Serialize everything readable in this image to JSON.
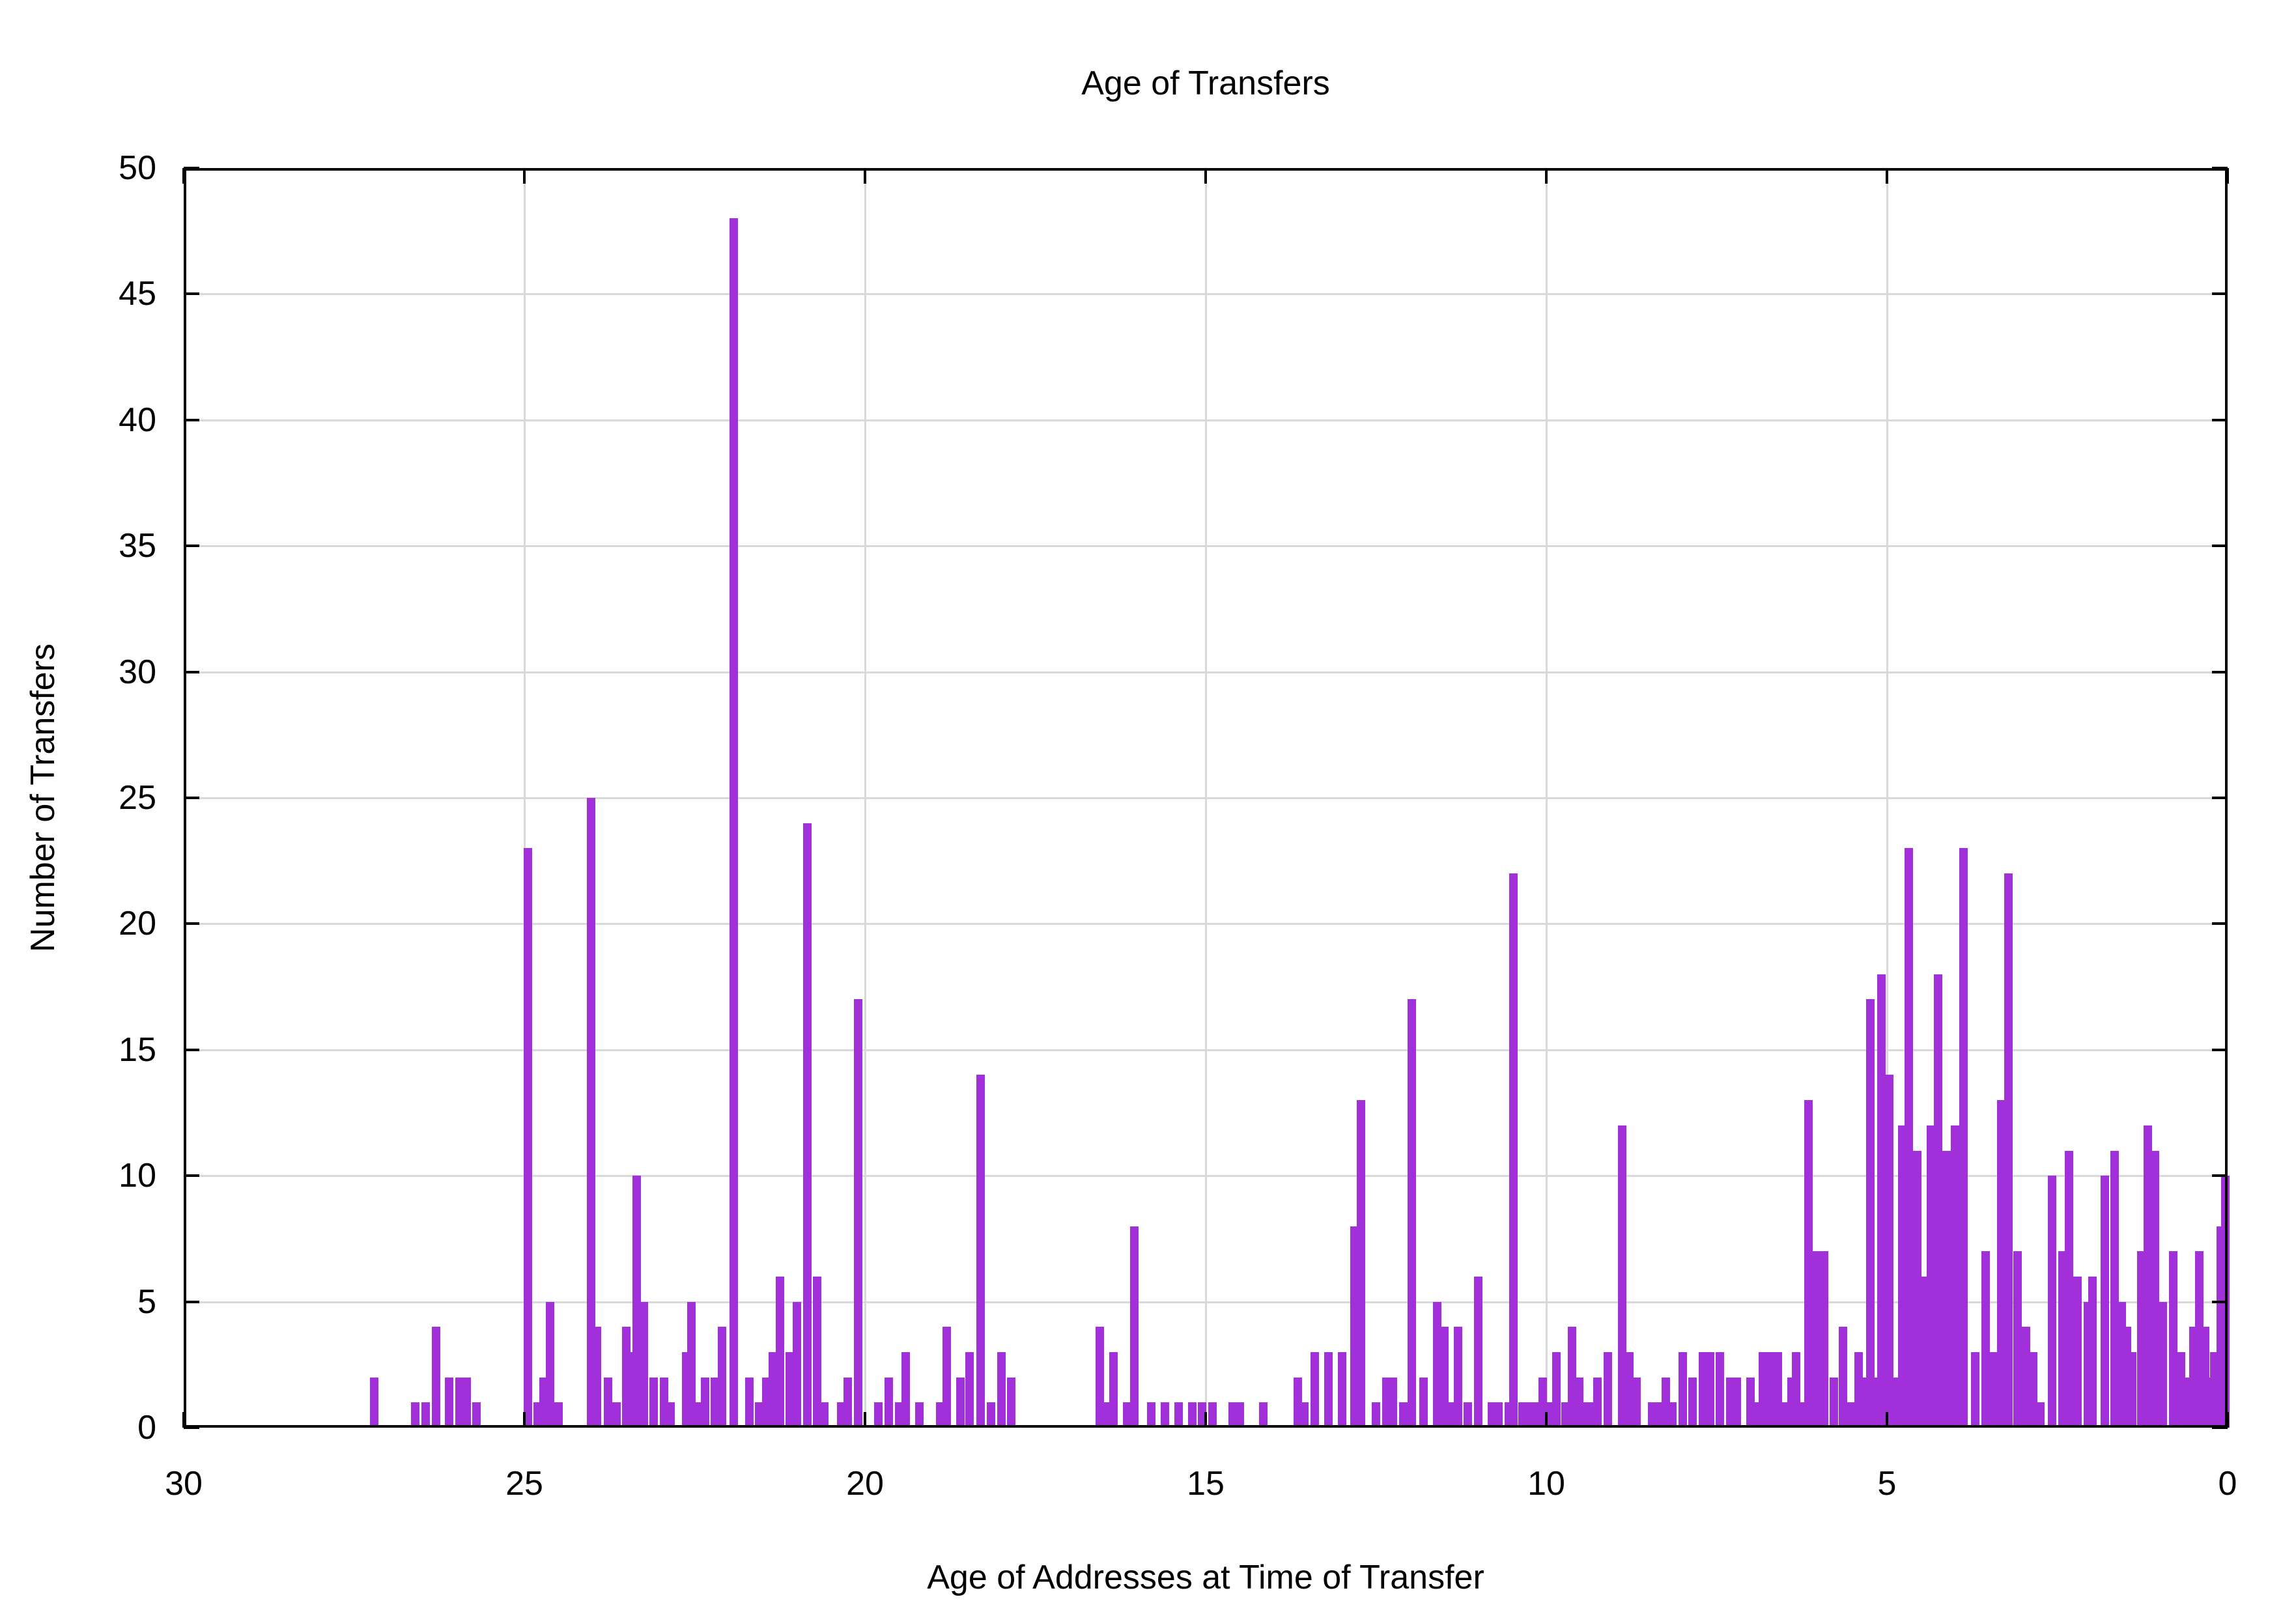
{
  "title": "Age of Transfers",
  "x_axis": {
    "label": "Age of Addresses at Time of Transfer",
    "ticks": [
      30,
      25,
      20,
      15,
      10,
      5,
      0
    ],
    "min": 0,
    "max": 30,
    "reversed": true
  },
  "y_axis": {
    "label": "Number of Transfers",
    "ticks": [
      0,
      5,
      10,
      15,
      20,
      25,
      30,
      35,
      40,
      45,
      50
    ],
    "min": 0,
    "max": 50
  },
  "colors": {
    "bar": "#A230DA",
    "grid": "#D9D9D9",
    "axis": "#000000",
    "background": "#FFFFFF"
  },
  "chart_data": {
    "type": "bar",
    "title": "Age of Transfers",
    "xlabel": "Age of Addresses at Time of Transfer",
    "ylabel": "Number of Transfers",
    "xlim": [
      30,
      0
    ],
    "ylim": [
      0,
      50
    ],
    "grid": true,
    "legend": "none",
    "bar_width_years": 0.125,
    "points_format": "[age_years, number_of_transfers]",
    "points": [
      [
        27.2,
        2
      ],
      [
        26.6,
        1
      ],
      [
        26.45,
        1
      ],
      [
        26.3,
        4
      ],
      [
        26.1,
        2
      ],
      [
        25.95,
        2
      ],
      [
        25.85,
        2
      ],
      [
        25.7,
        1
      ],
      [
        24.95,
        23
      ],
      [
        24.8,
        1
      ],
      [
        24.72,
        2
      ],
      [
        24.62,
        5
      ],
      [
        24.5,
        1
      ],
      [
        24.02,
        25
      ],
      [
        23.93,
        4
      ],
      [
        23.77,
        2
      ],
      [
        23.65,
        1
      ],
      [
        23.5,
        4
      ],
      [
        23.42,
        3
      ],
      [
        23.35,
        10
      ],
      [
        23.25,
        5
      ],
      [
        23.1,
        2
      ],
      [
        22.95,
        2
      ],
      [
        22.85,
        1
      ],
      [
        22.62,
        3
      ],
      [
        22.55,
        5
      ],
      [
        22.42,
        1
      ],
      [
        22.35,
        2
      ],
      [
        22.2,
        2
      ],
      [
        22.1,
        4
      ],
      [
        21.93,
        48
      ],
      [
        21.7,
        2
      ],
      [
        21.55,
        1
      ],
      [
        21.45,
        2
      ],
      [
        21.35,
        3
      ],
      [
        21.25,
        6
      ],
      [
        21.1,
        3
      ],
      [
        21.0,
        5
      ],
      [
        20.85,
        24
      ],
      [
        20.7,
        6
      ],
      [
        20.6,
        1
      ],
      [
        20.35,
        1
      ],
      [
        20.25,
        2
      ],
      [
        20.1,
        17
      ],
      [
        19.8,
        1
      ],
      [
        19.65,
        2
      ],
      [
        19.5,
        1
      ],
      [
        19.4,
        3
      ],
      [
        19.2,
        1
      ],
      [
        18.9,
        1
      ],
      [
        18.8,
        4
      ],
      [
        18.6,
        2
      ],
      [
        18.47,
        3
      ],
      [
        18.3,
        14
      ],
      [
        18.15,
        1
      ],
      [
        18.0,
        3
      ],
      [
        17.85,
        2
      ],
      [
        16.55,
        4
      ],
      [
        16.45,
        1
      ],
      [
        16.35,
        3
      ],
      [
        16.15,
        1
      ],
      [
        16.05,
        8
      ],
      [
        15.8,
        1
      ],
      [
        15.6,
        1
      ],
      [
        15.4,
        1
      ],
      [
        15.2,
        1
      ],
      [
        15.05,
        1
      ],
      [
        14.9,
        1
      ],
      [
        14.6,
        1
      ],
      [
        14.5,
        1
      ],
      [
        14.15,
        1
      ],
      [
        13.65,
        2
      ],
      [
        13.55,
        1
      ],
      [
        13.4,
        3
      ],
      [
        13.2,
        3
      ],
      [
        13.0,
        3
      ],
      [
        12.82,
        8
      ],
      [
        12.72,
        13
      ],
      [
        12.5,
        1
      ],
      [
        12.35,
        2
      ],
      [
        12.25,
        2
      ],
      [
        12.1,
        1
      ],
      [
        11.97,
        17
      ],
      [
        11.8,
        2
      ],
      [
        11.6,
        5
      ],
      [
        11.5,
        4
      ],
      [
        11.42,
        1
      ],
      [
        11.3,
        4
      ],
      [
        11.15,
        1
      ],
      [
        11.0,
        6
      ],
      [
        10.8,
        1
      ],
      [
        10.7,
        1
      ],
      [
        10.55,
        1
      ],
      [
        10.48,
        22
      ],
      [
        10.35,
        1
      ],
      [
        10.25,
        1
      ],
      [
        10.15,
        1
      ],
      [
        10.05,
        2
      ],
      [
        9.95,
        1
      ],
      [
        9.85,
        3
      ],
      [
        9.72,
        1
      ],
      [
        9.62,
        4
      ],
      [
        9.52,
        2
      ],
      [
        9.45,
        1
      ],
      [
        9.35,
        1
      ],
      [
        9.25,
        2
      ],
      [
        9.1,
        3
      ],
      [
        8.89,
        12
      ],
      [
        8.78,
        3
      ],
      [
        8.68,
        2
      ],
      [
        8.45,
        1
      ],
      [
        8.35,
        1
      ],
      [
        8.25,
        2
      ],
      [
        8.15,
        1
      ],
      [
        8.0,
        3
      ],
      [
        7.85,
        2
      ],
      [
        7.7,
        3
      ],
      [
        7.6,
        3
      ],
      [
        7.45,
        3
      ],
      [
        7.3,
        2
      ],
      [
        7.2,
        2
      ],
      [
        7.0,
        2
      ],
      [
        6.9,
        1
      ],
      [
        6.82,
        3
      ],
      [
        6.7,
        3
      ],
      [
        6.6,
        3
      ],
      [
        6.5,
        1
      ],
      [
        6.4,
        2
      ],
      [
        6.33,
        3
      ],
      [
        6.25,
        1
      ],
      [
        6.15,
        13
      ],
      [
        6.05,
        7
      ],
      [
        5.92,
        7
      ],
      [
        5.78,
        2
      ],
      [
        5.65,
        4
      ],
      [
        5.52,
        1
      ],
      [
        5.42,
        3
      ],
      [
        5.33,
        2
      ],
      [
        5.24,
        17
      ],
      [
        5.15,
        2
      ],
      [
        5.08,
        18
      ],
      [
        4.97,
        14
      ],
      [
        4.85,
        2
      ],
      [
        4.78,
        12
      ],
      [
        4.68,
        23
      ],
      [
        4.56,
        11
      ],
      [
        4.45,
        6
      ],
      [
        4.35,
        12
      ],
      [
        4.25,
        18
      ],
      [
        4.13,
        11
      ],
      [
        4.0,
        12
      ],
      [
        3.88,
        23
      ],
      [
        3.7,
        3
      ],
      [
        3.55,
        7
      ],
      [
        3.45,
        3
      ],
      [
        3.32,
        13
      ],
      [
        3.22,
        22
      ],
      [
        3.08,
        7
      ],
      [
        2.96,
        4
      ],
      [
        2.85,
        3
      ],
      [
        2.75,
        1
      ],
      [
        2.58,
        10
      ],
      [
        2.42,
        7
      ],
      [
        2.33,
        11
      ],
      [
        2.2,
        6
      ],
      [
        2.05,
        5
      ],
      [
        1.98,
        6
      ],
      [
        1.8,
        10
      ],
      [
        1.66,
        11
      ],
      [
        1.55,
        5
      ],
      [
        1.48,
        4
      ],
      [
        1.4,
        3
      ],
      [
        1.27,
        7
      ],
      [
        1.17,
        12
      ],
      [
        1.07,
        11
      ],
      [
        0.95,
        5
      ],
      [
        0.8,
        7
      ],
      [
        0.68,
        3
      ],
      [
        0.58,
        2
      ],
      [
        0.5,
        4
      ],
      [
        0.42,
        7
      ],
      [
        0.33,
        4
      ],
      [
        0.27,
        2
      ],
      [
        0.2,
        3
      ],
      [
        0.1,
        8
      ],
      [
        0.03,
        10
      ]
    ]
  }
}
